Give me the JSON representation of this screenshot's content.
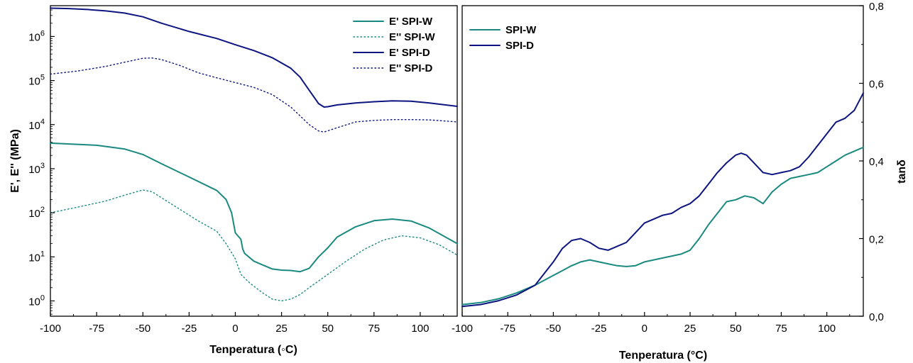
{
  "colors": {
    "teal": "#1a8a80",
    "navy": "#0d1580"
  },
  "chart_data": [
    {
      "type": "line",
      "xlabel": "Tenperatura (◦C)",
      "ylabel": "E', E'' (MPa)",
      "xlim": [
        -100,
        120
      ],
      "ylim": [
        0.45,
        5000000
      ],
      "yscale": "log",
      "xticks": [
        "-100",
        "-75",
        "-50",
        "-25",
        "0",
        "25",
        "50",
        "75",
        "100"
      ],
      "xtick_values": [
        -100,
        -75,
        -50,
        -25,
        0,
        25,
        50,
        75,
        100
      ],
      "yticks": [
        {
          "base": "10",
          "exp": "0",
          "value": 1
        },
        {
          "base": "10",
          "exp": "1",
          "value": 10
        },
        {
          "base": "10",
          "exp": "2",
          "value": 100
        },
        {
          "base": "10",
          "exp": "3",
          "value": 1000
        },
        {
          "base": "10",
          "exp": "4",
          "value": 10000
        },
        {
          "base": "10",
          "exp": "5",
          "value": 100000
        },
        {
          "base": "10",
          "exp": "6",
          "value": 1000000
        }
      ],
      "legend_position": "top-right",
      "grid": false,
      "series": [
        {
          "name": "E' SPI-W",
          "color": "#1a8a80",
          "style": "solid",
          "x": [
            -100,
            -75,
            -60,
            -50,
            -40,
            -25,
            -10,
            -5,
            -2,
            0,
            3,
            4,
            5,
            10,
            15,
            20,
            25,
            30,
            35,
            40,
            45,
            50,
            55,
            65,
            75,
            85,
            95,
            105,
            120
          ],
          "y": [
            3800,
            3400,
            2800,
            2100,
            1300,
            650,
            320,
            200,
            100,
            35,
            25,
            15,
            12,
            8,
            6.5,
            5.3,
            5,
            4.9,
            4.6,
            5.5,
            10,
            16,
            28,
            48,
            66,
            72,
            65,
            45,
            20
          ]
        },
        {
          "name": "E'' SPI-W",
          "color": "#1a8a80",
          "style": "dotted",
          "x": [
            -100,
            -85,
            -70,
            -60,
            -50,
            -45,
            -40,
            -30,
            -20,
            -10,
            -5,
            0,
            3,
            8,
            15,
            20,
            25,
            30,
            35,
            40,
            50,
            60,
            70,
            80,
            90,
            100,
            110,
            120
          ],
          "y": [
            100,
            135,
            185,
            250,
            330,
            300,
            220,
            120,
            65,
            38,
            20,
            9,
            4,
            2.5,
            1.5,
            1.1,
            1,
            1.1,
            1.4,
            2,
            4,
            8,
            15,
            24,
            30,
            27,
            19,
            11
          ]
        },
        {
          "name": "E' SPI-D",
          "color": "#0d1580",
          "style": "solid",
          "x": [
            -100,
            -90,
            -80,
            -70,
            -60,
            -50,
            -40,
            -25,
            -10,
            0,
            10,
            20,
            30,
            35,
            40,
            45,
            48,
            50,
            55,
            65,
            75,
            85,
            95,
            105,
            120
          ],
          "y": [
            4400000,
            4300000,
            4100000,
            3800000,
            3400000,
            2800000,
            2000000,
            1300000,
            900000,
            650000,
            480000,
            330000,
            190000,
            120000,
            60000,
            30000,
            25000,
            25500,
            28000,
            31000,
            33000,
            34500,
            34000,
            31000,
            26000
          ]
        },
        {
          "name": "E'' SPI-D",
          "color": "#0d1580",
          "style": "dotted",
          "x": [
            -100,
            -85,
            -70,
            -60,
            -50,
            -45,
            -40,
            -30,
            -20,
            -10,
            0,
            10,
            20,
            30,
            40,
            45,
            48,
            55,
            65,
            75,
            85,
            95,
            105,
            120
          ],
          "y": [
            140000,
            165000,
            210000,
            260000,
            320000,
            325000,
            300000,
            220000,
            150000,
            115000,
            90000,
            70000,
            48000,
            25000,
            10000,
            7200,
            6800,
            8500,
            11500,
            12500,
            13000,
            13000,
            12800,
            11500
          ]
        }
      ]
    },
    {
      "type": "line",
      "xlabel": "Tenperatura (°C)",
      "ylabel": "tanδ",
      "xlim": [
        -100,
        120
      ],
      "ylim": [
        0,
        0.8
      ],
      "xticks": [
        "-100",
        "-75",
        "-50",
        "-25",
        "0",
        "25",
        "50",
        "75",
        "100"
      ],
      "xtick_values": [
        -100,
        -75,
        -50,
        -25,
        0,
        25,
        50,
        75,
        100
      ],
      "yticks": [
        "0,0",
        "0,2",
        "0,4",
        "0,6",
        "0,8"
      ],
      "ytick_values": [
        0,
        0.2,
        0.4,
        0.6,
        0.8
      ],
      "legend_position": "top-left",
      "grid": false,
      "series": [
        {
          "name": "SPI-W",
          "color": "#1a8a80",
          "style": "solid",
          "x": [
            -100,
            -90,
            -80,
            -70,
            -60,
            -50,
            -40,
            -35,
            -30,
            -25,
            -20,
            -15,
            -10,
            -5,
            0,
            10,
            20,
            25,
            30,
            35,
            40,
            45,
            50,
            55,
            60,
            65,
            70,
            75,
            80,
            85,
            90,
            95,
            100,
            105,
            110,
            115,
            120
          ],
          "y": [
            0.03,
            0.035,
            0.045,
            0.06,
            0.08,
            0.105,
            0.13,
            0.14,
            0.145,
            0.14,
            0.135,
            0.13,
            0.128,
            0.13,
            0.14,
            0.15,
            0.16,
            0.17,
            0.2,
            0.235,
            0.265,
            0.295,
            0.3,
            0.31,
            0.305,
            0.29,
            0.32,
            0.34,
            0.355,
            0.36,
            0.365,
            0.37,
            0.385,
            0.4,
            0.415,
            0.425,
            0.435
          ]
        },
        {
          "name": "SPI-D",
          "color": "#0d1580",
          "style": "solid",
          "x": [
            -100,
            -90,
            -80,
            -70,
            -60,
            -50,
            -45,
            -40,
            -35,
            -30,
            -25,
            -20,
            -15,
            -10,
            -5,
            0,
            5,
            10,
            15,
            20,
            25,
            30,
            35,
            40,
            45,
            50,
            53,
            56,
            60,
            65,
            70,
            75,
            80,
            85,
            90,
            95,
            100,
            105,
            110,
            115,
            120
          ],
          "y": [
            0.025,
            0.03,
            0.04,
            0.055,
            0.08,
            0.14,
            0.175,
            0.195,
            0.2,
            0.19,
            0.175,
            0.17,
            0.18,
            0.19,
            0.215,
            0.24,
            0.25,
            0.26,
            0.265,
            0.28,
            0.29,
            0.31,
            0.34,
            0.37,
            0.395,
            0.415,
            0.42,
            0.415,
            0.395,
            0.37,
            0.365,
            0.37,
            0.375,
            0.385,
            0.41,
            0.44,
            0.47,
            0.5,
            0.51,
            0.53,
            0.575
          ]
        }
      ]
    }
  ]
}
